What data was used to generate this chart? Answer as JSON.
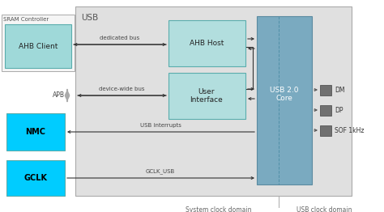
{
  "title": "USB",
  "sram_label": "SRAM Controller",
  "ahb_client_label": "AHB Client",
  "ahb_host_label": "AHB Host",
  "user_interface_label": [
    "User",
    "Interface"
  ],
  "usb_core_label": [
    "USB 2.0",
    "Core"
  ],
  "nmc_label": "NMC",
  "gclk_label": "GCLK",
  "apb_label": "APB",
  "dedicated_bus_label": "dedicated bus",
  "device_wide_bus_label": "device-wide bus",
  "usb_interrupts_label": "USB interrupts",
  "gclk_usb_label": "GCLK_USB",
  "dm_label": "DM",
  "dp_label": "DP",
  "sof_label": "SOF 1kHz",
  "system_clock_label": "System clock domain",
  "usb_clock_label": "USB clock domain",
  "usb_bg_color": "#e0e0e0",
  "sram_bg_color": "#f5f5f5",
  "ahb_client_color": "#9fd9d9",
  "ahb_host_color": "#b2dede",
  "user_if_color": "#b2dede",
  "usb_core_color": "#7aaac0",
  "usb_core_dark": "#5a8aa0",
  "nmc_color": "#00ccff",
  "gclk_color": "#00ccff",
  "gray_sq_color": "#707070",
  "apb_arrow_color": "#aaaaaa",
  "line_color": "#666666",
  "text_color": "#444444",
  "border_gray": "#aaaaaa",
  "border_teal": "#5aadad"
}
